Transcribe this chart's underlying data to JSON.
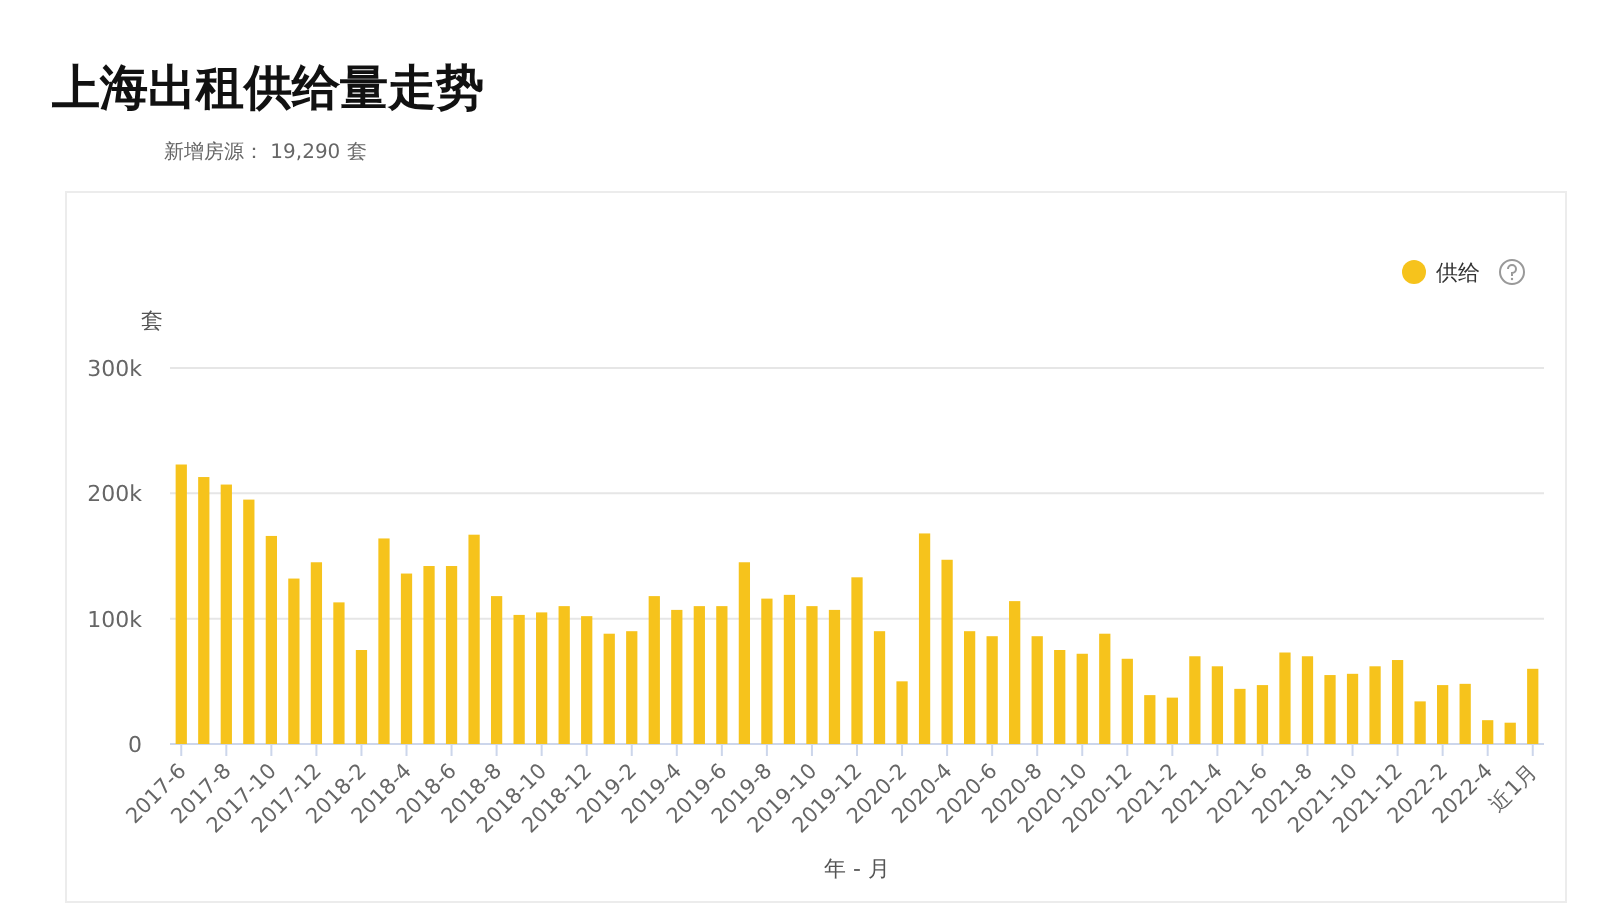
{
  "chart_data": {
    "type": "bar",
    "title": "上海出租供给量走势",
    "subtitle": "新增房源： 19,290 套",
    "xlabel": "年 - 月",
    "ylabel": "套",
    "categories": [
      "2017-6",
      null,
      "2017-8",
      null,
      "2017-10",
      null,
      "2017-12",
      null,
      "2018-2",
      null,
      "2018-4",
      null,
      "2018-6",
      null,
      "2018-8",
      null,
      "2018-10",
      null,
      "2018-12",
      null,
      "2019-2",
      null,
      "2019-4",
      null,
      "2019-6",
      null,
      "2019-8",
      null,
      "2019-10",
      null,
      "2019-12",
      null,
      "2020-2",
      null,
      "2020-4",
      null,
      "2020-6",
      null,
      "2020-8",
      null,
      "2020-10",
      null,
      "2020-12",
      null,
      "2021-2",
      null,
      "2021-4",
      null,
      "2021-6",
      null,
      "2021-8",
      null,
      "2021-10",
      null,
      "2021-12",
      null,
      "2022-2",
      null,
      "2022-4",
      null,
      "近1月"
    ],
    "series": [
      {
        "name": "供给",
        "color": "#f6c31c",
        "values": [
          223000,
          213000,
          207000,
          195000,
          166000,
          132000,
          145000,
          113000,
          75000,
          164000,
          136000,
          142000,
          142000,
          167000,
          118000,
          103000,
          105000,
          110000,
          102000,
          88000,
          90000,
          118000,
          107000,
          110000,
          110000,
          145000,
          116000,
          119000,
          110000,
          107000,
          133000,
          90000,
          50000,
          168000,
          147000,
          90000,
          86000,
          114000,
          86000,
          75000,
          72000,
          88000,
          68000,
          39000,
          37000,
          70000,
          62000,
          44000,
          47000,
          73000,
          70000,
          55000,
          56000,
          62000,
          67000,
          34000,
          47000,
          48000,
          19000,
          17000,
          60000
        ]
      }
    ],
    "ylim": [
      0,
      300000
    ],
    "yticks": [
      {
        "value": 0,
        "label": "0"
      },
      {
        "value": 100000,
        "label": "100k"
      },
      {
        "value": 200000,
        "label": "200k"
      },
      {
        "value": 300000,
        "label": "300k"
      }
    ],
    "grid": "y",
    "legend": "top right"
  }
}
